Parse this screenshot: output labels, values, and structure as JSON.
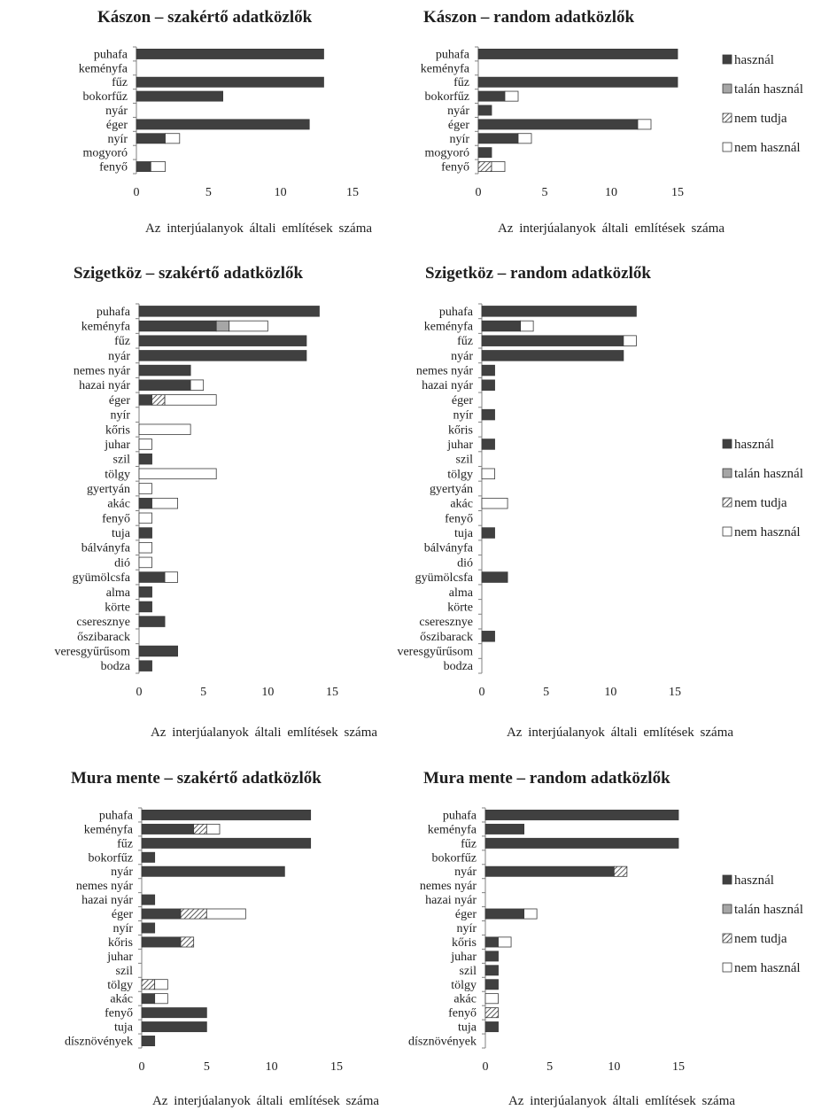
{
  "legend": {
    "entries": [
      {
        "key": "hasznal",
        "label": "használ",
        "color": "#404040"
      },
      {
        "key": "talan",
        "label": "talán használ",
        "color": "#a6a6a6"
      },
      {
        "key": "nemtudja",
        "label": "nem tudja",
        "color": "hatch"
      },
      {
        "key": "nemhasznal",
        "label": "nem használ",
        "color": "#ffffff"
      }
    ]
  },
  "chart_data": [
    {
      "type": "bar",
      "orientation": "horizontal",
      "stacked": true,
      "title": "Kászon – szakértő adatközlők",
      "xlabel": "Az interjúalanyok általi említések száma",
      "xlim": [
        0,
        15
      ],
      "xticks": [
        0,
        5,
        10,
        15
      ],
      "categories": [
        "puhafa",
        "keményfa",
        "fűz",
        "bokorfűz",
        "nyár",
        "éger",
        "nyír",
        "mogyoró",
        "fenyő"
      ],
      "series": [
        {
          "name": "használ",
          "values": [
            13,
            0,
            13,
            6,
            0,
            12,
            2,
            0,
            1
          ]
        },
        {
          "name": "talán használ",
          "values": [
            0,
            0,
            0,
            0,
            0,
            0,
            0,
            0,
            0
          ]
        },
        {
          "name": "nem tudja",
          "values": [
            0,
            0,
            0,
            0,
            0,
            0,
            0,
            0,
            0
          ]
        },
        {
          "name": "nem használ",
          "values": [
            0,
            0,
            0,
            0,
            0,
            0,
            1,
            0,
            1
          ]
        }
      ]
    },
    {
      "type": "bar",
      "orientation": "horizontal",
      "stacked": true,
      "title": "Kászon – random adatközlők",
      "xlabel": "Az interjúalanyok általi említések száma",
      "xlim": [
        0,
        15
      ],
      "xticks": [
        0,
        5,
        10,
        15
      ],
      "categories": [
        "puhafa",
        "keményfa",
        "fűz",
        "bokorfűz",
        "nyár",
        "éger",
        "nyír",
        "mogyoró",
        "fenyő"
      ],
      "series": [
        {
          "name": "használ",
          "values": [
            15,
            0,
            15,
            2,
            1,
            12,
            3,
            1,
            0
          ]
        },
        {
          "name": "talán használ",
          "values": [
            0,
            0,
            0,
            0,
            0,
            0,
            0,
            0,
            0
          ]
        },
        {
          "name": "nem tudja",
          "values": [
            0,
            0,
            0,
            0,
            0,
            0,
            0,
            0,
            1
          ]
        },
        {
          "name": "nem használ",
          "values": [
            0,
            0,
            0,
            1,
            0,
            1,
            1,
            0,
            1
          ]
        }
      ]
    },
    {
      "type": "bar",
      "orientation": "horizontal",
      "stacked": true,
      "title": "Szigetköz – szakértő adatközlők",
      "xlabel": "Az interjúalanyok általi említések száma",
      "xlim": [
        0,
        15
      ],
      "xticks": [
        0,
        5,
        10,
        15
      ],
      "categories": [
        "puhafa",
        "keményfa",
        "fűz",
        "nyár",
        "nemes nyár",
        "hazai nyár",
        "éger",
        "nyír",
        "kőris",
        "juhar",
        "szil",
        "tölgy",
        "gyertyán",
        "akác",
        "fenyő",
        "tuja",
        "bálványfa",
        "dió",
        "gyümölcsfa",
        "alma",
        "körte",
        "cseresznye",
        "őszibarack",
        "veresgyűrűsom",
        "bodza"
      ],
      "series": [
        {
          "name": "használ",
          "values": [
            14,
            6,
            13,
            13,
            4,
            4,
            1,
            0,
            0,
            0,
            1,
            0,
            0,
            1,
            0,
            1,
            0,
            0,
            2,
            1,
            1,
            2,
            0,
            3,
            1
          ]
        },
        {
          "name": "talán használ",
          "values": [
            0,
            1,
            0,
            0,
            0,
            0,
            0,
            0,
            0,
            0,
            0,
            0,
            0,
            0,
            0,
            0,
            0,
            0,
            0,
            0,
            0,
            0,
            0,
            0,
            0
          ]
        },
        {
          "name": "nem tudja",
          "values": [
            0,
            0,
            0,
            0,
            0,
            0,
            1,
            0,
            0,
            0,
            0,
            0,
            0,
            0,
            0,
            0,
            0,
            0,
            0,
            0,
            0,
            0,
            0,
            0,
            0
          ]
        },
        {
          "name": "nem használ",
          "values": [
            0,
            3,
            0,
            0,
            0,
            1,
            4,
            0,
            4,
            1,
            0,
            6,
            1,
            2,
            1,
            0,
            1,
            1,
            1,
            0,
            0,
            0,
            0,
            0,
            0
          ]
        }
      ]
    },
    {
      "type": "bar",
      "orientation": "horizontal",
      "stacked": true,
      "title": "Szigetköz – random adatközlők",
      "xlabel": "Az interjúalanyok általi említések száma",
      "xlim": [
        0,
        15
      ],
      "xticks": [
        0,
        5,
        10,
        15
      ],
      "categories": [
        "puhafa",
        "keményfa",
        "fűz",
        "nyár",
        "nemes nyár",
        "hazai nyár",
        "éger",
        "nyír",
        "kőris",
        "juhar",
        "szil",
        "tölgy",
        "gyertyán",
        "akác",
        "fenyő",
        "tuja",
        "bálványfa",
        "dió",
        "gyümölcsfa",
        "alma",
        "körte",
        "cseresznye",
        "őszibarack",
        "veresgyűrűsom",
        "bodza"
      ],
      "series": [
        {
          "name": "használ",
          "values": [
            12,
            3,
            11,
            11,
            1,
            1,
            0,
            1,
            0,
            1,
            0,
            0,
            0,
            0,
            0,
            1,
            0,
            0,
            2,
            0,
            0,
            0,
            1,
            0,
            0
          ]
        },
        {
          "name": "talán használ",
          "values": [
            0,
            0,
            0,
            0,
            0,
            0,
            0,
            0,
            0,
            0,
            0,
            0,
            0,
            0,
            0,
            0,
            0,
            0,
            0,
            0,
            0,
            0,
            0,
            0,
            0
          ]
        },
        {
          "name": "nem tudja",
          "values": [
            0,
            0,
            0,
            0,
            0,
            0,
            0,
            0,
            0,
            0,
            0,
            0,
            0,
            0,
            0,
            0,
            0,
            0,
            0,
            0,
            0,
            0,
            0,
            0,
            0
          ]
        },
        {
          "name": "nem használ",
          "values": [
            0,
            1,
            1,
            0,
            0,
            0,
            0,
            0,
            0,
            0,
            0,
            1,
            0,
            2,
            0,
            0,
            0,
            0,
            0,
            0,
            0,
            0,
            0,
            0,
            0
          ]
        }
      ]
    },
    {
      "type": "bar",
      "orientation": "horizontal",
      "stacked": true,
      "title": "Mura mente – szakértő adatközlők",
      "xlabel": "Az interjúalanyok általi említések száma",
      "xlim": [
        0,
        15
      ],
      "xticks": [
        0,
        5,
        10,
        15
      ],
      "categories": [
        "puhafa",
        "keményfa",
        "fűz",
        "bokorfűz",
        "nyár",
        "nemes nyár",
        "hazai nyár",
        "éger",
        "nyír",
        "kőris",
        "juhar",
        "szil",
        "tölgy",
        "akác",
        "fenyő",
        "tuja",
        "dísznövények"
      ],
      "series": [
        {
          "name": "használ",
          "values": [
            13,
            4,
            13,
            1,
            11,
            0,
            1,
            3,
            1,
            3,
            0,
            0,
            0,
            1,
            5,
            5,
            1
          ]
        },
        {
          "name": "talán használ",
          "values": [
            0,
            0,
            0,
            0,
            0,
            0,
            0,
            0,
            0,
            0,
            0,
            0,
            0,
            0,
            0,
            0,
            0
          ]
        },
        {
          "name": "nem tudja",
          "values": [
            0,
            1,
            0,
            0,
            0,
            0,
            0,
            2,
            0,
            1,
            0,
            0,
            1,
            0,
            0,
            0,
            0
          ]
        },
        {
          "name": "nem használ",
          "values": [
            0,
            1,
            0,
            0,
            0,
            0,
            0,
            3,
            0,
            0,
            0,
            0,
            1,
            1,
            0,
            0,
            0
          ]
        }
      ]
    },
    {
      "type": "bar",
      "orientation": "horizontal",
      "stacked": true,
      "title": "Mura mente – random adatközlők",
      "xlabel": "Az interjúalanyok általi említések száma",
      "xlim": [
        0,
        15
      ],
      "xticks": [
        0,
        5,
        10,
        15
      ],
      "categories": [
        "puhafa",
        "keményfa",
        "fűz",
        "bokorfűz",
        "nyár",
        "nemes nyár",
        "hazai nyár",
        "éger",
        "nyír",
        "kőris",
        "juhar",
        "szil",
        "tölgy",
        "akác",
        "fenyő",
        "tuja",
        "dísznövények"
      ],
      "series": [
        {
          "name": "használ",
          "values": [
            15,
            3,
            15,
            0,
            10,
            0,
            0,
            3,
            0,
            1,
            1,
            1,
            1,
            0,
            0,
            1,
            0
          ]
        },
        {
          "name": "talán használ",
          "values": [
            0,
            0,
            0,
            0,
            0,
            0,
            0,
            0,
            0,
            0,
            0,
            0,
            0,
            0,
            0,
            0,
            0
          ]
        },
        {
          "name": "nem tudja",
          "values": [
            0,
            0,
            0,
            0,
            1,
            0,
            0,
            0,
            0,
            0,
            0,
            0,
            0,
            0,
            1,
            0,
            0
          ]
        },
        {
          "name": "nem használ",
          "values": [
            0,
            0,
            0,
            0,
            0,
            0,
            0,
            1,
            0,
            1,
            0,
            0,
            0,
            1,
            0,
            0,
            0
          ]
        }
      ]
    }
  ]
}
